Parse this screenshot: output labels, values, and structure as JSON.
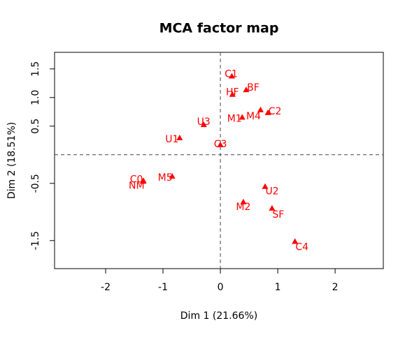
{
  "chart_data": {
    "type": "scatter",
    "title": "MCA factor map",
    "x_label": "Dim 1 (21.66%)",
    "y_label": "Dim 2 (18.51%)",
    "labels": [
      "C1",
      "BF",
      "HF",
      "C2",
      "M4",
      "M1",
      "U3",
      "U1",
      "C3",
      "M5",
      "C0",
      "NM",
      "U2",
      "M2",
      "SF",
      "C4"
    ],
    "x": [
      0.2,
      0.45,
      0.21,
      0.83,
      0.7,
      0.38,
      -0.29,
      -0.71,
      0.0,
      -0.84,
      -1.34,
      -1.35,
      0.78,
      0.4,
      0.9,
      1.3
    ],
    "y": [
      1.37,
      1.13,
      1.05,
      0.73,
      0.78,
      0.65,
      0.52,
      0.29,
      0.17,
      -0.38,
      -0.46,
      -0.47,
      -0.56,
      -0.83,
      -0.94,
      -1.52
    ],
    "color": "#ff0000",
    "xlim": [
      -2.89,
      2.84
    ],
    "xticks": [
      -2,
      -1,
      0,
      1,
      2
    ],
    "ylim": [
      -1.99,
      1.79
    ],
    "yticks": [
      {
        "value": -1.5,
        "label": "-1.5"
      },
      {
        "value": -0.5,
        "label": "-0.5"
      },
      {
        "value": 0.5,
        "label": "0.5"
      },
      {
        "value": 1,
        "label": "1.0"
      },
      {
        "value": 1.5,
        "label": "1.5"
      }
    ]
  }
}
